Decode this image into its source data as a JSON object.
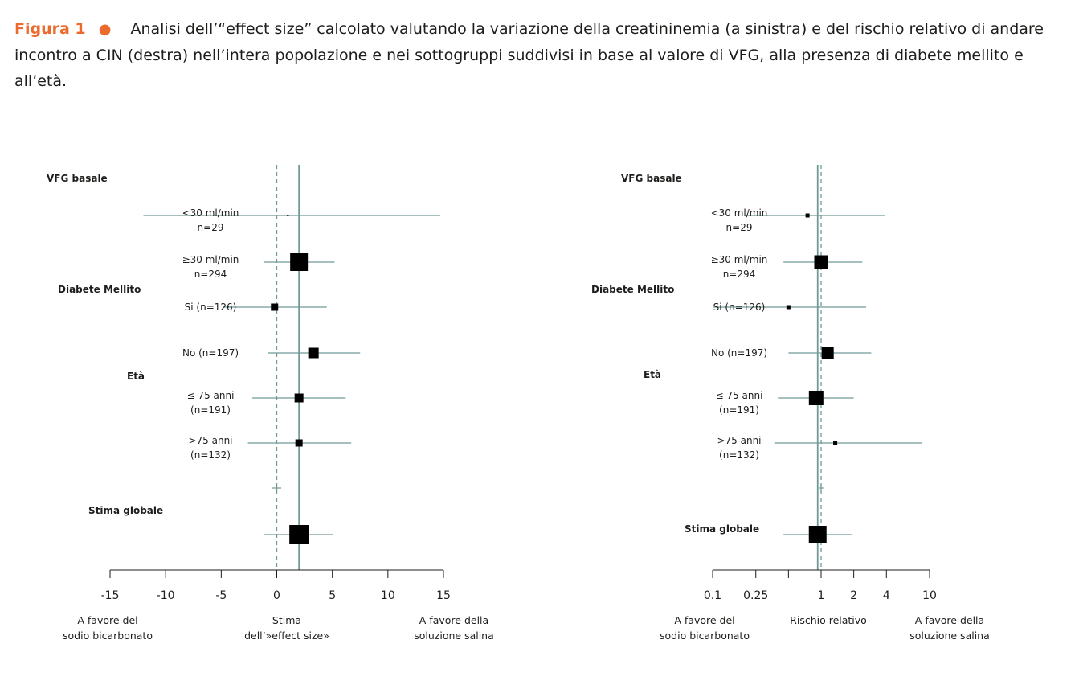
{
  "caption": {
    "label": "Figura 1",
    "bullet": "●",
    "text": "Analisi dell’“effect size” calcolato valutando la variazione della creatininemia (a sinistra) e del rischio relativo di andare incontro a CIN (destra) nell’intera popolazione e nei sottogruppi suddivisi in base al valore di VFG, alla presenza di diabete mellito e all’età."
  },
  "colors": {
    "accent": "#ec6a2e",
    "line": "#6f9a96",
    "text": "#1d1d1b",
    "marker": "#000000"
  },
  "chart_data": [
    {
      "type": "forest",
      "scale": "linear",
      "xlim": [
        -15,
        15
      ],
      "ticks": [
        -15,
        -10,
        -5,
        0,
        5,
        10,
        15
      ],
      "reference_dashed": 0,
      "reference_solid": 2,
      "footer_left": [
        "A favore del",
        "sodio bicarbonato"
      ],
      "footer_center": [
        "Stima",
        "dell’»effect size»"
      ],
      "footer_right": [
        "A favore della",
        "soluzione salina"
      ],
      "headers": [
        {
          "text": "VFG basale",
          "row": 0
        },
        {
          "text": "Diabete Mellito",
          "row": 2
        },
        {
          "text": "Età",
          "row": 4
        },
        {
          "text": "Stima globale",
          "row": 6.7
        }
      ],
      "rows": [
        {
          "label": [
            "<30 ml/min",
            "n=29"
          ],
          "est": 1,
          "lo": -12,
          "hi": 14.7,
          "size": 2
        },
        {
          "label": [
            "≥30 ml/min",
            "n=294"
          ],
          "est": 2,
          "lo": -1.2,
          "hi": 5.2,
          "size": 22
        },
        {
          "label": [
            "Si (n=126)"
          ],
          "est": -0.2,
          "lo": -4.8,
          "hi": 4.5,
          "size": 9
        },
        {
          "label": [
            "No (n=197)"
          ],
          "est": 3.3,
          "lo": -0.8,
          "hi": 7.5,
          "size": 13
        },
        {
          "label": [
            "≤ 75 anni",
            "(n=191)"
          ],
          "est": 2,
          "lo": -2.2,
          "hi": 6.2,
          "size": 11
        },
        {
          "label": [
            ">75 anni",
            "(n=132)"
          ],
          "est": 2,
          "lo": -2.6,
          "hi": 6.7,
          "size": 9
        },
        {
          "label": [],
          "est": 0,
          "lo": -0.4,
          "hi": 0.4,
          "size": 0
        },
        {
          "label": [],
          "est": 2,
          "lo": -1.2,
          "hi": 5.1,
          "size": 24
        }
      ]
    },
    {
      "type": "forest",
      "scale": "log",
      "xlim": [
        0.1,
        10
      ],
      "ticks": [
        0.1,
        0.25,
        0.5,
        1,
        2,
        4,
        10
      ],
      "tick_labels": [
        "0.1",
        "0.25",
        "",
        "1",
        "2",
        "4",
        "10"
      ],
      "reference_dashed": 1,
      "reference_solid": 0.93,
      "footer_left": [
        "A favore del",
        "sodio bicarbonato"
      ],
      "footer_center": [
        "Rischio relativo"
      ],
      "footer_right": [
        "A favore della",
        "soluzione salina"
      ],
      "headers": [
        {
          "text": "VFG basale",
          "row": 0
        },
        {
          "text": "Diabete Mellito",
          "row": 2
        },
        {
          "text": "Età",
          "row": 4
        },
        {
          "text": "Stima globale",
          "row": 7
        }
      ],
      "rows": [
        {
          "label": [
            "<30 ml/min",
            "n=29"
          ],
          "est": 0.75,
          "lo": 0.2,
          "hi": 3.9,
          "size": 5
        },
        {
          "label": [
            "≥30 ml/min",
            "n=294"
          ],
          "est": 1,
          "lo": 0.45,
          "hi": 2.4,
          "size": 17
        },
        {
          "label": [
            "Si (n=126)"
          ],
          "est": 0.5,
          "lo": 0.1,
          "hi": 2.6,
          "size": 5
        },
        {
          "label": [
            "No (n=197)"
          ],
          "est": 1.15,
          "lo": 0.5,
          "hi": 2.9,
          "size": 15
        },
        {
          "label": [
            "≤ 75 anni",
            "(n=191)"
          ],
          "est": 0.9,
          "lo": 0.4,
          "hi": 2.0,
          "size": 18
        },
        {
          "label": [
            ">75 anni",
            "(n=132)"
          ],
          "est": 1.35,
          "lo": 0.37,
          "hi": 8.5,
          "size": 5
        },
        {
          "label": [],
          "est": 1,
          "lo": 0.95,
          "hi": 1.05,
          "size": 0
        },
        {
          "label": [],
          "est": 0.93,
          "lo": 0.45,
          "hi": 1.95,
          "size": 22
        }
      ]
    }
  ]
}
